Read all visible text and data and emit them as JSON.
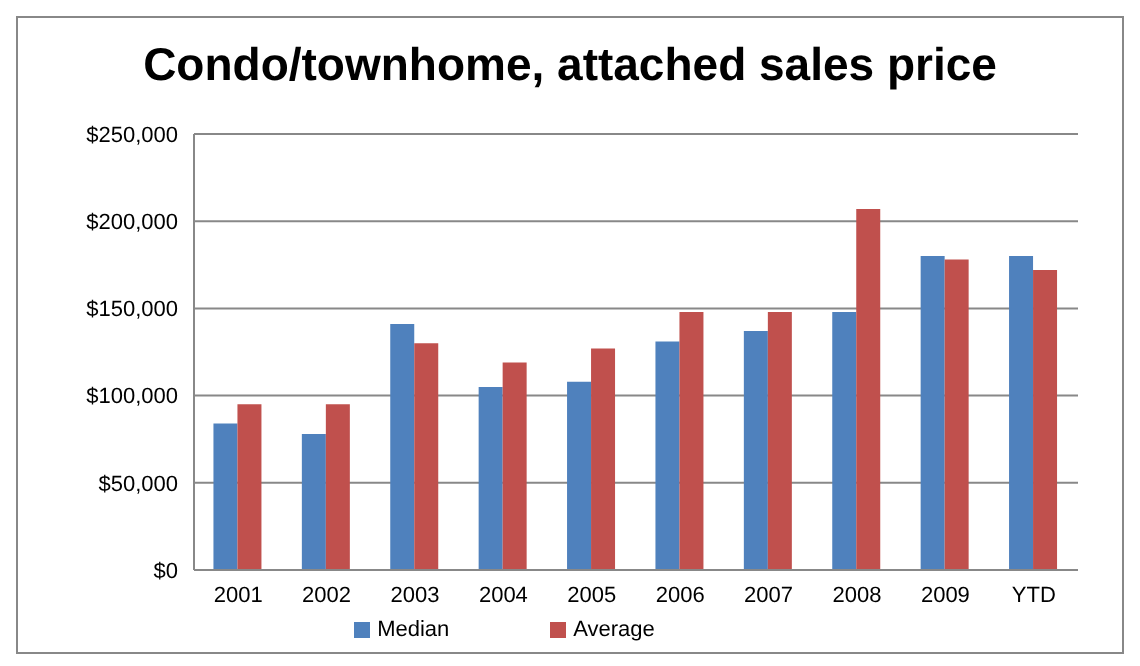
{
  "chart_data": {
    "type": "bar",
    "title": "Condo/townhome, attached sales price",
    "categories": [
      "2001",
      "2002",
      "2003",
      "2004",
      "2005",
      "2006",
      "2007",
      "2008",
      "2009",
      "YTD"
    ],
    "series": [
      {
        "name": "Median",
        "color": "#4f81bd",
        "values": [
          84000,
          78000,
          141000,
          105000,
          108000,
          131000,
          137000,
          148000,
          180000,
          180000
        ]
      },
      {
        "name": "Average",
        "color": "#c0504d",
        "values": [
          95000,
          95000,
          130000,
          119000,
          127000,
          148000,
          148000,
          207000,
          178000,
          172000
        ]
      }
    ],
    "ylim": [
      0,
      250000
    ],
    "yticks": [
      {
        "value": 0,
        "label": "$0"
      },
      {
        "value": 50000,
        "label": "$50,000"
      },
      {
        "value": 100000,
        "label": "$100,000"
      },
      {
        "value": 150000,
        "label": "$150,000"
      },
      {
        "value": 200000,
        "label": "$200,000"
      },
      {
        "value": 250000,
        "label": "$250,000"
      }
    ],
    "grid": "y",
    "legend": "bottom"
  }
}
